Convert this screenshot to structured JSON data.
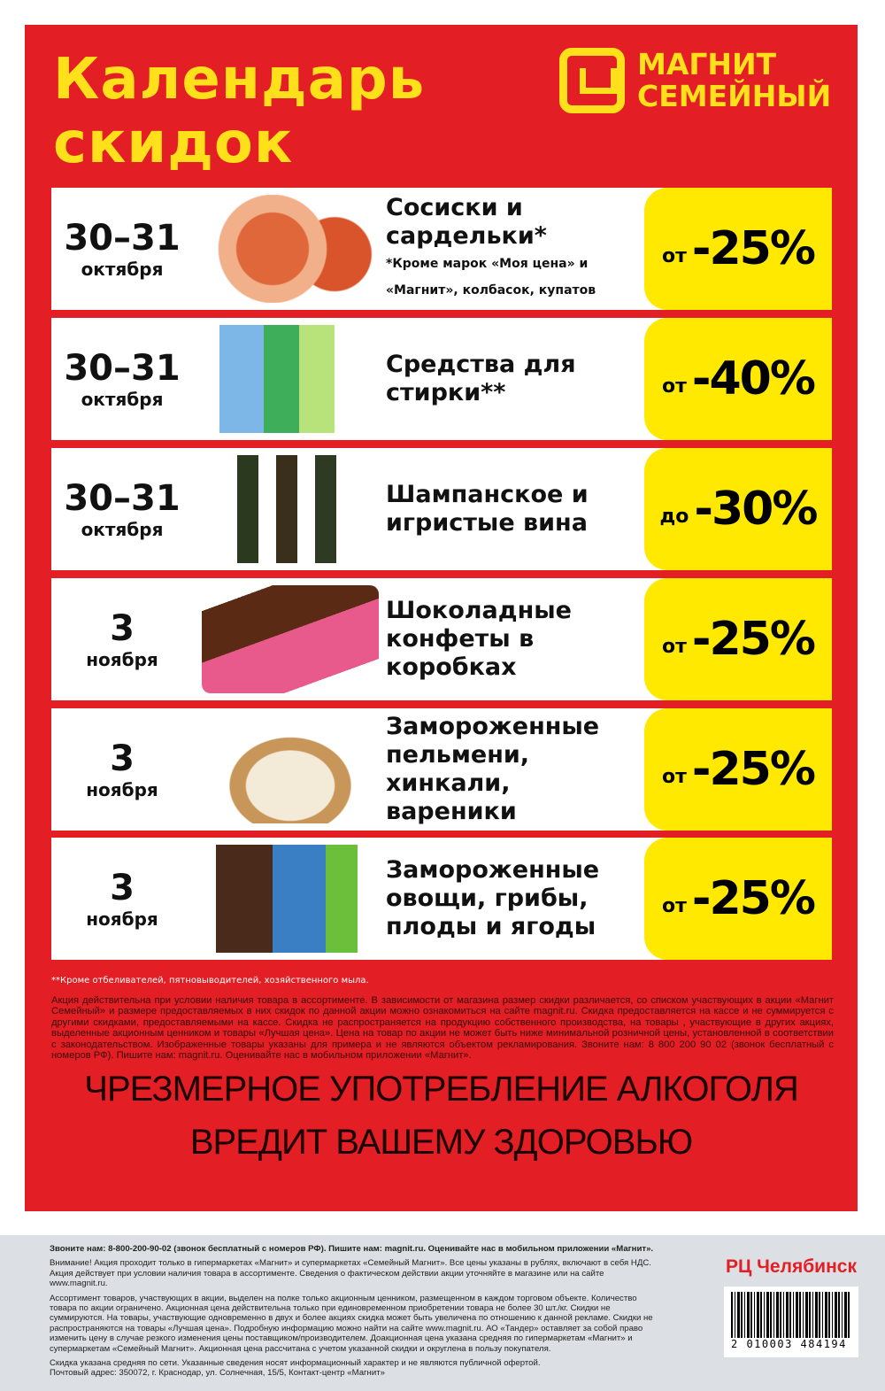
{
  "header": {
    "title_line1": "Календарь",
    "title_line2": "скидок",
    "logo_line1": "МАГНИТ",
    "logo_line2": "СЕМЕЙНЫЙ"
  },
  "colors": {
    "red": "#e31e24",
    "yellow": "#ffe900",
    "title_yellow": "#ffe01b"
  },
  "offers": [
    {
      "date": "30–31",
      "month": "октября",
      "name": "Сосиски и сардельки*",
      "note": "*Кроме марок «Моя цена» и «Магнит», колбасок, купатов",
      "prefix": "от",
      "discount": "-25%",
      "image": "sausages"
    },
    {
      "date": "30–31",
      "month": "октября",
      "name": "Средства для стирки**",
      "note": "",
      "prefix": "от",
      "discount": "-40%",
      "image": "detergents"
    },
    {
      "date": "30–31",
      "month": "октября",
      "name": "Шампанское и игристые вина",
      "note": "",
      "prefix": "до",
      "discount": "-30%",
      "image": "champagne"
    },
    {
      "date": "3",
      "month": "ноября",
      "name": "Шоколадные конфеты в коробках",
      "note": "",
      "prefix": "от",
      "discount": "-25%",
      "image": "chocolates"
    },
    {
      "date": "3",
      "month": "ноября",
      "name": "Замороженные пельмени, хинкали, вареники",
      "note": "",
      "prefix": "от",
      "discount": "-25%",
      "image": "dumplings"
    },
    {
      "date": "3",
      "month": "ноября",
      "name": "Замороженные овощи, грибы, плоды и ягоды",
      "note": "",
      "prefix": "от",
      "discount": "-25%",
      "image": "frozen-vegetables"
    }
  ],
  "footnote": "**Кроме отбеливателей, пятновыводителей, хозяйственного мыла.",
  "terms": "Акция действительна при условии наличия товара в ассортименте. В зависимости от магазина размер скидки различается, со списком участвующих в акции «Магнит Семейный» и размере предоставляемых в них скидок по данной акции можно ознакомиться на сайте magnit.ru. Скидка предоставляется на кассе и не суммируется с другими скидками, предоставляемыми на кассе. Скидка не распространяется на продукцию собственного производства, на товары , участвующие в других акциях, выделенные акционным ценником и товары «Лучшая цена». Цена на товар по акции не может быть ниже минимальной розничной цены, установленной в соответствии с законодательством. Изображенные товары указаны для примера и не являются объектом рекламирования. Звоните нам: 8 800 200 90 02 (звонок бесплатный с номеров РФ). Пишите нам: magnit.ru. Оценивайте нас в мобильном приложении «Магнит».",
  "warning_line1": "ЧРЕЗМЕРНОЕ УПОТРЕБЛЕНИЕ АЛКОГОЛЯ",
  "warning_line2": "ВРЕДИТ ВАШЕМУ ЗДОРОВЬЮ",
  "footer": {
    "contact": "Звоните нам: 8-800-200-90-02 (звонок бесплатный с номеров РФ). Пишите нам: magnit.ru. Оценивайте нас в мобильном приложении «Магнит».",
    "attention": "Внимание! Акция проходит только в гипермаркетах «Магнит» и супермаркетах «Семейный Магнит». Все цены указаны в рублях, включают в себя НДС. Акция действует при условии наличия товара в ассортименте. Сведения о фактическом действии акции уточняйте в магазине или на сайте www.magnit.ru.",
    "assortment": "Ассортимент товаров, участвующих в акции, выделен на полке только акционным ценником, размещенном в каждом торговом объекте. Количество товара по акции ограничено. Акционная цена действительна только при единовременном приобретении товара не более 30 шт./кг. Скидки не суммируются. На товары, участвующие одновременно в двух и более акциях скидка может быть увеличена по отношению к данной рекламе. Скидки не распространяются на товары «Лучшая цена». Подробную информацию можно найти на сайте www.magnit.ru. АО «Тандер» оставляет за собой право изменить цену в случае резкого изменения цены поставщиком/производителем. Доакционная цена указана средняя по гипермаркетам «Магнит» и супермаркетам «Семейный Магнит». Акционная цена рассчитана с учетом указанной скидки и округлена в пользу покупателя.",
    "average": "Скидка указана средняя по сети. Указанные сведения носят информационный характер и не являются публичной офертой.",
    "address": "Почтовый адрес: 350072, г. Краснодар, ул. Солнечная, 15/5, Контакт-центр «Магнит»",
    "region": "РЦ Челябинск",
    "barcode": "2 010003 484194"
  }
}
